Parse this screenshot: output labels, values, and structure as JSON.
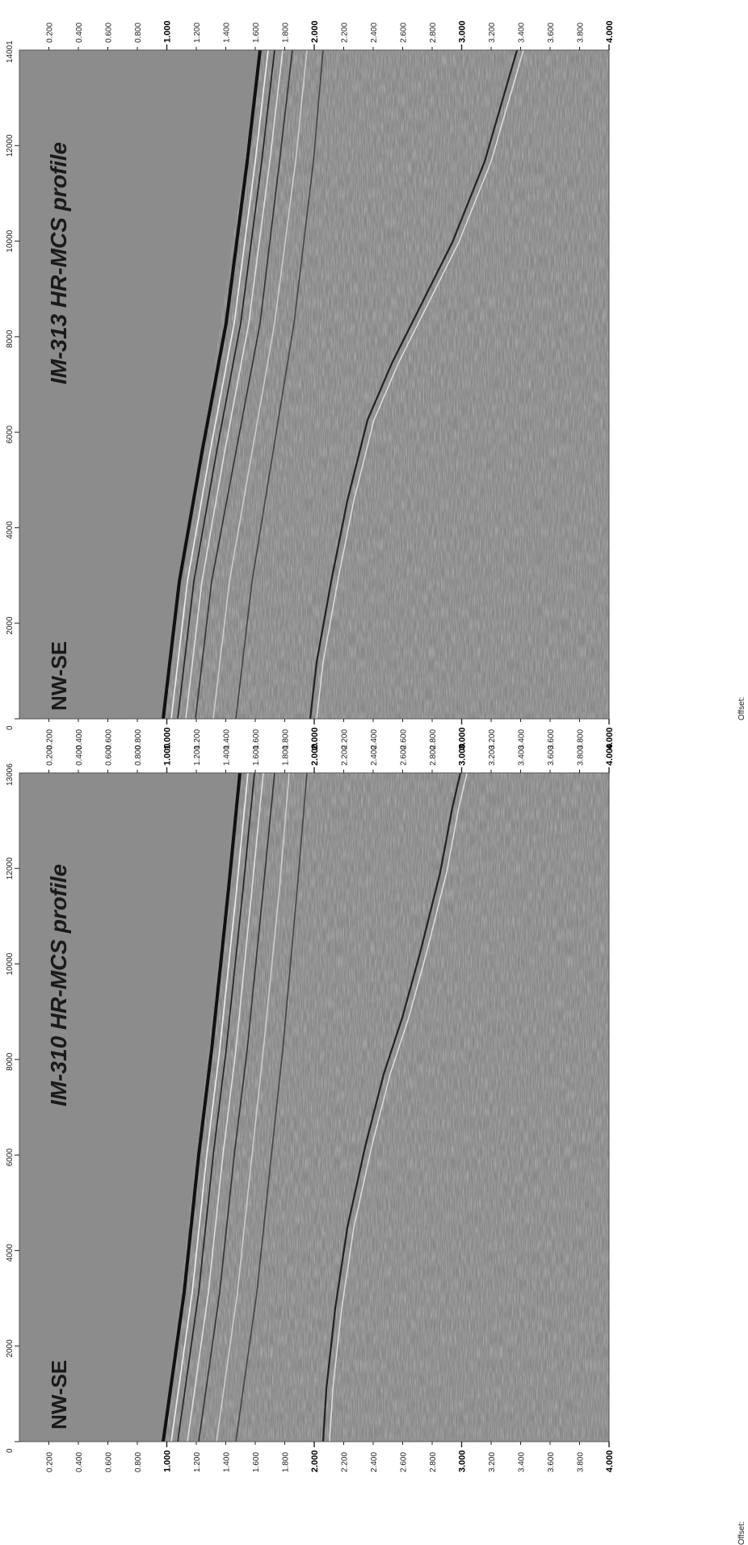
{
  "panels": [
    {
      "id": "im313",
      "title": "IM-313 HR-MCS profile",
      "direction": "NW-SE",
      "offset_label": "Offset:",
      "offset_max_label": "14001",
      "offset_ticks": [
        "0",
        "2000",
        "4000",
        "6000",
        "8000",
        "10000",
        "12000"
      ],
      "time_ticks": [
        "0.200",
        "0.400",
        "0.600",
        "0.800",
        "1.000",
        "1.200",
        "1.400",
        "1.600",
        "1.800",
        "2.000",
        "2.200",
        "2.400",
        "2.600",
        "2.800",
        "3.000",
        "3.200",
        "3.400",
        "3.600",
        "3.800",
        "4.000"
      ]
    },
    {
      "id": "im310",
      "title": "IM-310 HR-MCS profile",
      "direction": "NW-SE",
      "offset_label": "Offset:",
      "offset_max_label": "13006",
      "offset_ticks": [
        "0",
        "2000",
        "4000",
        "6000",
        "8000",
        "10000",
        "12000"
      ],
      "time_ticks": [
        "0.200",
        "0.400",
        "0.600",
        "0.800",
        "1.000",
        "1.200",
        "1.400",
        "1.600",
        "1.800",
        "2.000",
        "2.200",
        "2.400",
        "2.600",
        "2.800",
        "3.000",
        "3.200",
        "3.400",
        "3.600",
        "3.800",
        "4.000"
      ]
    }
  ],
  "colors": {
    "water": "#8c8c8c",
    "sediment": "#888888",
    "reflector": "#111111",
    "background": "#ffffff"
  }
}
